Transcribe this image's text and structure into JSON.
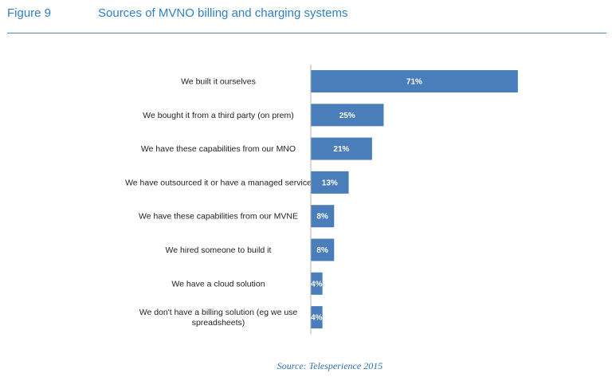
{
  "header": {
    "figure_label": "Figure 9",
    "title": "Sources of MVNO billing and charging systems"
  },
  "chart_data": {
    "type": "bar",
    "orientation": "horizontal",
    "categories": [
      [
        "We built it ourselves"
      ],
      [
        "We bought it from a third party (on prem)"
      ],
      [
        "We have these capabilities from our MNO"
      ],
      [
        "We have outsourced it or have a managed service"
      ],
      [
        "We have these capabilities from our MVNE"
      ],
      [
        "We hired someone to build it"
      ],
      [
        "We have a cloud solution"
      ],
      [
        "We don't have a billing solution (eg we use",
        "spreadsheets)"
      ]
    ],
    "values": [
      71,
      25,
      21,
      13,
      8,
      8,
      4,
      4
    ],
    "value_labels": [
      "71%",
      "25%",
      "21%",
      "13%",
      "8%",
      "8%",
      "4%",
      "4%"
    ],
    "unit": "%",
    "bar_color": "#4a7ebb",
    "grid": false,
    "legend": "none"
  },
  "source": "Source: Telesperience 2015"
}
